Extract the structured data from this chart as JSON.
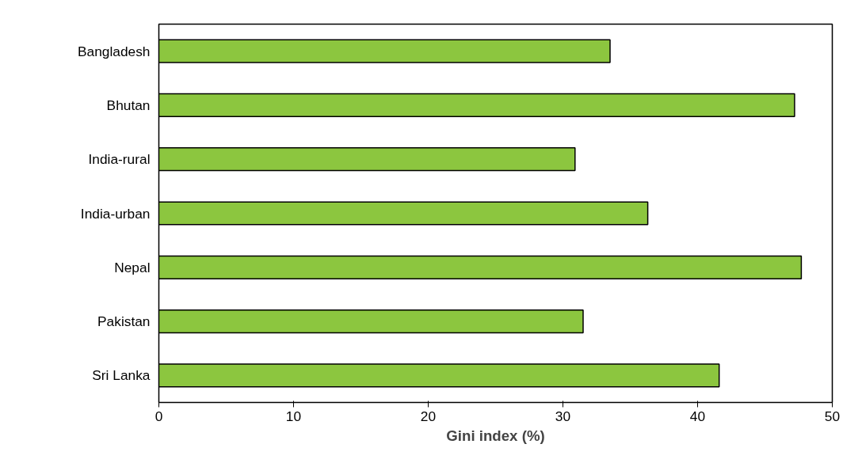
{
  "chart_data": {
    "type": "bar",
    "orientation": "horizontal",
    "xlabel": "Gini index (%)",
    "categories": [
      "Bangladesh",
      "Bhutan",
      "India-rural",
      "India-urban",
      "Nepal",
      "Pakistan",
      "Sri Lanka"
    ],
    "values": [
      33.5,
      47.2,
      30.9,
      36.3,
      47.7,
      31.5,
      41.6
    ],
    "color": "#8cc63f",
    "xlim": [
      0,
      50
    ],
    "xticks": [
      0,
      10,
      20,
      30,
      40,
      50
    ],
    "grid": false
  }
}
